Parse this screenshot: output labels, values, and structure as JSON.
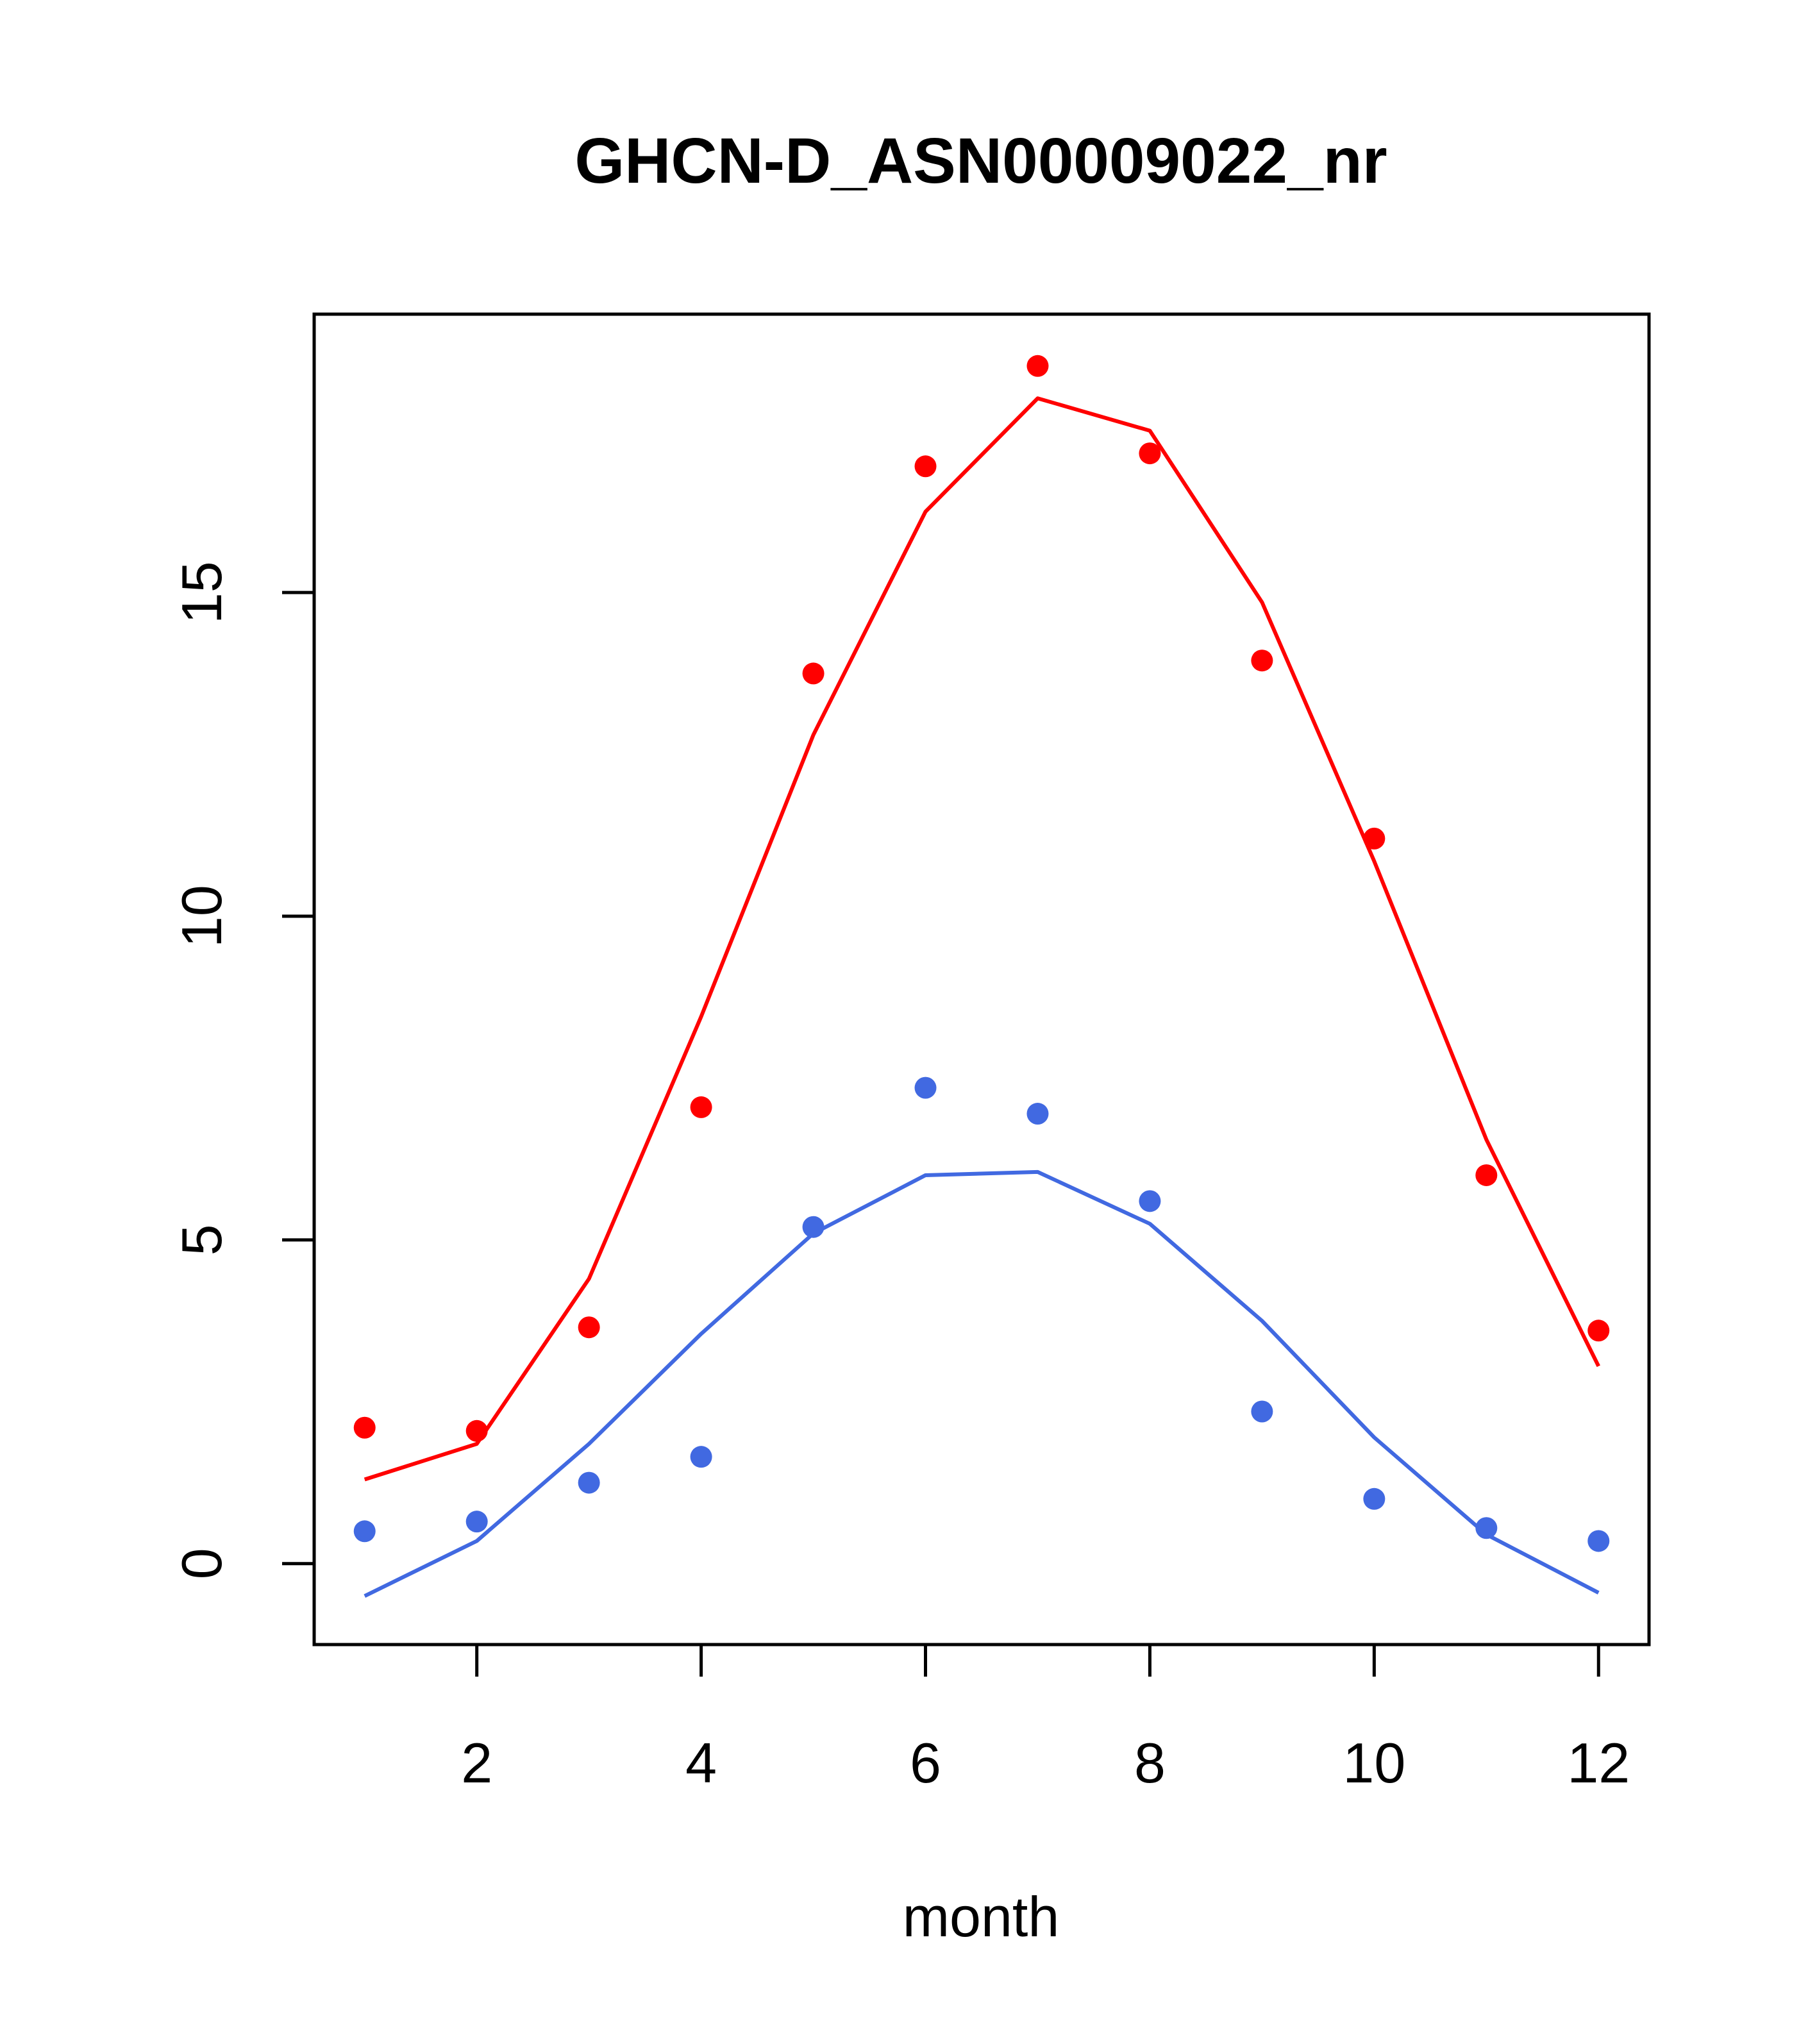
{
  "chart_data": {
    "type": "line",
    "title": "GHCN-D_ASN00009022_nr",
    "xlabel": "month",
    "ylabel": "",
    "xlim": [
      0.55,
      12.45
    ],
    "ylim": [
      -1.25,
      19.3
    ],
    "x_ticks": [
      "2",
      "4",
      "6",
      "8",
      "10",
      "12"
    ],
    "y_ticks": [
      "0",
      "5",
      "10",
      "15"
    ],
    "grid": false,
    "x": [
      1,
      2,
      3,
      4,
      5,
      6,
      7,
      8,
      9,
      10,
      11,
      12
    ],
    "series": [
      {
        "color": "#ff0000",
        "points": [
          2.1,
          2.05,
          3.65,
          7.05,
          13.75,
          16.95,
          18.5,
          17.15,
          13.95,
          11.2,
          6.0,
          3.6
        ],
        "line": [
          1.3,
          1.85,
          4.4,
          8.45,
          12.8,
          16.25,
          18.0,
          17.5,
          14.85,
          10.85,
          6.55,
          3.05
        ]
      },
      {
        "color": "#4169e1",
        "points": [
          0.5,
          0.65,
          1.25,
          1.65,
          5.2,
          7.35,
          6.95,
          5.6,
          2.35,
          1.0,
          0.55,
          0.35
        ],
        "line": [
          -0.5,
          0.35,
          1.85,
          3.55,
          5.1,
          6.0,
          6.05,
          5.25,
          3.75,
          1.95,
          0.45,
          -0.45
        ]
      }
    ]
  }
}
